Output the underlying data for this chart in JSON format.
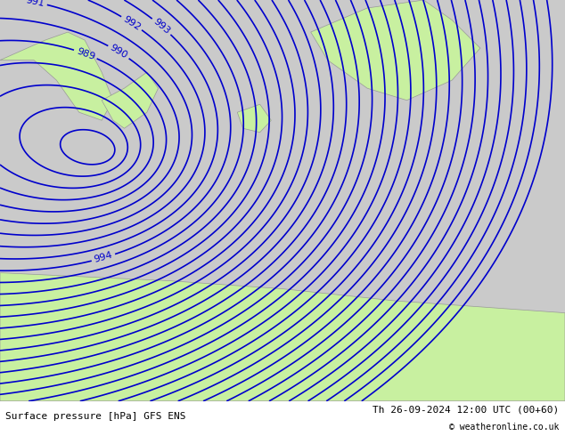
{
  "title_left": "Surface pressure [hPa] GFS ENS",
  "title_right": "Th 26-09-2024 12:00 UTC (00+60)",
  "copyright": "© weatheronline.co.uk",
  "background_land": "#c8f0a0",
  "background_sea": "#d8eeff",
  "contour_color": "#0000cc",
  "contour_linewidth": 1.2,
  "label_color": "#0000cc",
  "label_fontsize": 8,
  "text_fontsize": 8,
  "fig_width": 6.34,
  "fig_height": 4.9,
  "dpi": 100
}
